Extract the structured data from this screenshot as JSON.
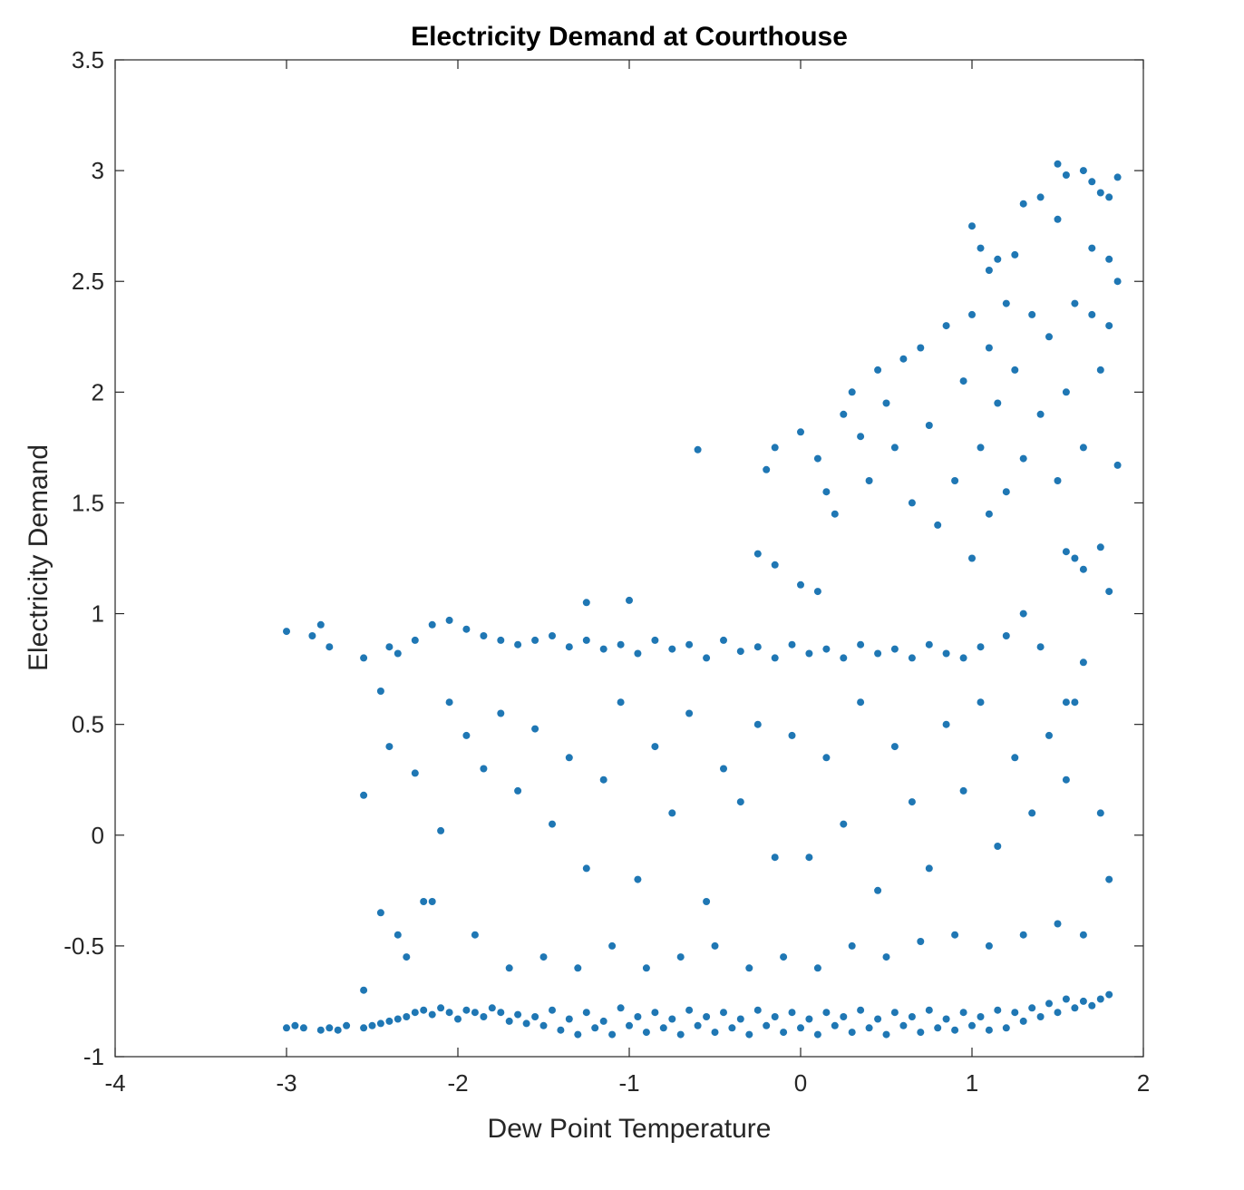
{
  "chart_data": {
    "type": "scatter",
    "title": "Electricity Demand at Courthouse",
    "xlabel": "Dew Point Temperature",
    "ylabel": "Electricity Demand",
    "xlim": [
      -4,
      2
    ],
    "ylim": [
      -1,
      3.5
    ],
    "xticks": [
      "-4",
      "-3",
      "-2",
      "-1",
      "0",
      "1",
      "2"
    ],
    "yticks": [
      "-1",
      "-0.5",
      "0",
      "0.5",
      "1",
      "1.5",
      "2",
      "2.5",
      "3",
      "3.5"
    ],
    "grid": false,
    "marker_color": "#1f77b4",
    "series": [
      {
        "points": [
          [
            -3.0,
            -0.87
          ],
          [
            -2.95,
            -0.86
          ],
          [
            -2.9,
            -0.87
          ],
          [
            -2.8,
            -0.88
          ],
          [
            -2.75,
            -0.87
          ],
          [
            -2.7,
            -0.88
          ],
          [
            -2.65,
            -0.86
          ],
          [
            -2.55,
            -0.87
          ],
          [
            -2.5,
            -0.86
          ],
          [
            -2.45,
            -0.85
          ],
          [
            -2.4,
            -0.84
          ],
          [
            -2.35,
            -0.83
          ],
          [
            -2.3,
            -0.82
          ],
          [
            -2.25,
            -0.8
          ],
          [
            -2.2,
            -0.79
          ],
          [
            -2.15,
            -0.81
          ],
          [
            -2.1,
            -0.78
          ],
          [
            -2.05,
            -0.8
          ],
          [
            -2.0,
            -0.83
          ],
          [
            -1.95,
            -0.79
          ],
          [
            -1.9,
            -0.8
          ],
          [
            -1.85,
            -0.82
          ],
          [
            -1.8,
            -0.78
          ],
          [
            -1.75,
            -0.8
          ],
          [
            -1.7,
            -0.84
          ],
          [
            -1.65,
            -0.81
          ],
          [
            -1.6,
            -0.85
          ],
          [
            -1.55,
            -0.82
          ],
          [
            -1.5,
            -0.86
          ],
          [
            -1.45,
            -0.79
          ],
          [
            -1.4,
            -0.88
          ],
          [
            -1.35,
            -0.83
          ],
          [
            -1.3,
            -0.9
          ],
          [
            -1.25,
            -0.8
          ],
          [
            -1.2,
            -0.87
          ],
          [
            -1.15,
            -0.84
          ],
          [
            -1.1,
            -0.9
          ],
          [
            -1.05,
            -0.78
          ],
          [
            -1.0,
            -0.86
          ],
          [
            -0.95,
            -0.82
          ],
          [
            -0.9,
            -0.89
          ],
          [
            -0.85,
            -0.8
          ],
          [
            -0.8,
            -0.87
          ],
          [
            -0.75,
            -0.83
          ],
          [
            -0.7,
            -0.9
          ],
          [
            -0.65,
            -0.79
          ],
          [
            -0.6,
            -0.86
          ],
          [
            -0.55,
            -0.82
          ],
          [
            -0.5,
            -0.89
          ],
          [
            -0.45,
            -0.8
          ],
          [
            -0.4,
            -0.87
          ],
          [
            -0.35,
            -0.83
          ],
          [
            -0.3,
            -0.9
          ],
          [
            -0.25,
            -0.79
          ],
          [
            -0.2,
            -0.86
          ],
          [
            -0.15,
            -0.82
          ],
          [
            -0.1,
            -0.89
          ],
          [
            -0.05,
            -0.8
          ],
          [
            0.0,
            -0.87
          ],
          [
            0.05,
            -0.83
          ],
          [
            0.1,
            -0.9
          ],
          [
            0.15,
            -0.8
          ],
          [
            0.2,
            -0.86
          ],
          [
            0.25,
            -0.82
          ],
          [
            0.3,
            -0.89
          ],
          [
            0.35,
            -0.79
          ],
          [
            0.4,
            -0.87
          ],
          [
            0.45,
            -0.83
          ],
          [
            0.5,
            -0.9
          ],
          [
            0.55,
            -0.8
          ],
          [
            0.6,
            -0.86
          ],
          [
            0.65,
            -0.82
          ],
          [
            0.7,
            -0.89
          ],
          [
            0.75,
            -0.79
          ],
          [
            0.8,
            -0.87
          ],
          [
            0.85,
            -0.83
          ],
          [
            0.9,
            -0.88
          ],
          [
            0.95,
            -0.8
          ],
          [
            1.0,
            -0.86
          ],
          [
            1.05,
            -0.82
          ],
          [
            1.1,
            -0.88
          ],
          [
            1.15,
            -0.79
          ],
          [
            1.2,
            -0.87
          ],
          [
            1.25,
            -0.8
          ],
          [
            1.3,
            -0.84
          ],
          [
            1.35,
            -0.78
          ],
          [
            1.4,
            -0.82
          ],
          [
            1.45,
            -0.76
          ],
          [
            1.5,
            -0.8
          ],
          [
            1.55,
            -0.74
          ],
          [
            1.6,
            -0.78
          ],
          [
            1.65,
            -0.75
          ],
          [
            1.7,
            -0.77
          ],
          [
            1.75,
            -0.74
          ],
          [
            1.8,
            -0.72
          ],
          [
            -2.3,
            -0.55
          ],
          [
            -2.2,
            -0.3
          ],
          [
            -2.1,
            0.02
          ],
          [
            -2.25,
            0.28
          ],
          [
            -2.4,
            0.4
          ],
          [
            -2.55,
            0.18
          ],
          [
            -2.45,
            0.65
          ],
          [
            -2.35,
            0.82
          ],
          [
            -2.25,
            0.88
          ],
          [
            -2.15,
            0.95
          ],
          [
            -2.05,
            0.97
          ],
          [
            -1.95,
            0.93
          ],
          [
            -1.85,
            0.9
          ],
          [
            -1.75,
            0.88
          ],
          [
            -1.65,
            0.86
          ],
          [
            -1.55,
            0.88
          ],
          [
            -1.45,
            0.9
          ],
          [
            -1.35,
            0.85
          ],
          [
            -1.25,
            0.88
          ],
          [
            -1.15,
            0.84
          ],
          [
            -1.05,
            0.86
          ],
          [
            -0.95,
            0.82
          ],
          [
            -0.85,
            0.88
          ],
          [
            -0.75,
            0.84
          ],
          [
            -0.65,
            0.86
          ],
          [
            -0.55,
            0.8
          ],
          [
            -0.45,
            0.88
          ],
          [
            -0.35,
            0.83
          ],
          [
            -0.25,
            0.85
          ],
          [
            -0.15,
            0.8
          ],
          [
            -0.05,
            0.86
          ],
          [
            0.05,
            0.82
          ],
          [
            0.15,
            0.84
          ],
          [
            0.25,
            0.8
          ],
          [
            0.35,
            0.86
          ],
          [
            0.45,
            0.82
          ],
          [
            0.55,
            0.84
          ],
          [
            0.65,
            0.8
          ],
          [
            0.75,
            0.86
          ],
          [
            0.85,
            0.82
          ],
          [
            0.95,
            0.8
          ],
          [
            1.05,
            0.85
          ],
          [
            -2.05,
            0.6
          ],
          [
            -1.95,
            0.45
          ],
          [
            -1.85,
            0.3
          ],
          [
            -1.75,
            0.55
          ],
          [
            -1.65,
            0.2
          ],
          [
            -1.55,
            0.48
          ],
          [
            -1.45,
            0.05
          ],
          [
            -1.35,
            0.35
          ],
          [
            -1.25,
            -0.15
          ],
          [
            -1.15,
            0.25
          ],
          [
            -1.05,
            0.6
          ],
          [
            -0.95,
            -0.2
          ],
          [
            -0.85,
            0.4
          ],
          [
            -0.75,
            0.1
          ],
          [
            -0.65,
            0.55
          ],
          [
            -0.55,
            -0.3
          ],
          [
            -0.45,
            0.3
          ],
          [
            -0.35,
            0.15
          ],
          [
            -0.25,
            0.5
          ],
          [
            -0.15,
            -0.1
          ],
          [
            -0.05,
            0.45
          ],
          [
            0.05,
            -0.1
          ],
          [
            0.15,
            0.35
          ],
          [
            0.25,
            0.05
          ],
          [
            0.35,
            0.6
          ],
          [
            0.45,
            -0.25
          ],
          [
            0.55,
            0.4
          ],
          [
            0.65,
            0.15
          ],
          [
            0.75,
            -0.15
          ],
          [
            0.85,
            0.5
          ],
          [
            0.95,
            0.2
          ],
          [
            1.05,
            0.6
          ],
          [
            1.15,
            -0.05
          ],
          [
            1.25,
            0.35
          ],
          [
            1.35,
            0.1
          ],
          [
            1.45,
            0.45
          ],
          [
            1.55,
            0.25
          ],
          [
            1.6,
            0.6
          ],
          [
            1.75,
            0.1
          ],
          [
            1.8,
            -0.2
          ],
          [
            -1.9,
            -0.45
          ],
          [
            -1.7,
            -0.6
          ],
          [
            -1.5,
            -0.55
          ],
          [
            -1.3,
            -0.6
          ],
          [
            -1.1,
            -0.5
          ],
          [
            -0.9,
            -0.6
          ],
          [
            -0.7,
            -0.55
          ],
          [
            -0.5,
            -0.5
          ],
          [
            -0.3,
            -0.6
          ],
          [
            -0.1,
            -0.55
          ],
          [
            0.1,
            -0.6
          ],
          [
            0.3,
            -0.5
          ],
          [
            0.5,
            -0.55
          ],
          [
            0.7,
            -0.48
          ],
          [
            0.9,
            -0.45
          ],
          [
            1.1,
            -0.5
          ],
          [
            1.3,
            -0.45
          ],
          [
            1.5,
            -0.4
          ],
          [
            1.65,
            -0.45
          ],
          [
            -0.6,
            1.74
          ],
          [
            -0.2,
            1.65
          ],
          [
            -0.15,
            1.75
          ],
          [
            -0.25,
            1.27
          ],
          [
            -0.15,
            1.22
          ],
          [
            -1.0,
            1.06
          ],
          [
            -1.25,
            1.05
          ],
          [
            0.0,
            1.13
          ],
          [
            0.1,
            1.1
          ],
          [
            0.0,
            1.82
          ],
          [
            0.1,
            1.7
          ],
          [
            0.15,
            1.55
          ],
          [
            0.2,
            1.45
          ],
          [
            0.25,
            1.9
          ],
          [
            0.3,
            2.0
          ],
          [
            0.35,
            1.8
          ],
          [
            0.4,
            1.6
          ],
          [
            0.45,
            2.1
          ],
          [
            0.5,
            1.95
          ],
          [
            0.55,
            1.75
          ],
          [
            0.6,
            2.15
          ],
          [
            0.65,
            1.5
          ],
          [
            0.7,
            2.2
          ],
          [
            0.75,
            1.85
          ],
          [
            0.8,
            1.4
          ],
          [
            0.85,
            2.3
          ],
          [
            0.9,
            1.6
          ],
          [
            0.95,
            2.05
          ],
          [
            1.0,
            1.25
          ],
          [
            1.0,
            2.35
          ],
          [
            1.05,
            1.75
          ],
          [
            1.1,
            2.2
          ],
          [
            1.1,
            1.45
          ],
          [
            1.15,
            1.95
          ],
          [
            1.2,
            2.4
          ],
          [
            1.2,
            1.55
          ],
          [
            1.25,
            2.1
          ],
          [
            1.3,
            1.7
          ],
          [
            1.35,
            2.35
          ],
          [
            1.4,
            1.9
          ],
          [
            1.45,
            2.25
          ],
          [
            1.5,
            1.6
          ],
          [
            1.55,
            2.0
          ],
          [
            1.6,
            2.4
          ],
          [
            1.65,
            1.75
          ],
          [
            1.7,
            2.35
          ],
          [
            1.75,
            2.1
          ],
          [
            1.8,
            2.3
          ],
          [
            1.85,
            1.67
          ],
          [
            1.0,
            2.75
          ],
          [
            1.05,
            2.65
          ],
          [
            1.1,
            2.55
          ],
          [
            1.15,
            2.6
          ],
          [
            1.25,
            2.62
          ],
          [
            1.3,
            2.85
          ],
          [
            1.4,
            2.88
          ],
          [
            1.5,
            2.78
          ],
          [
            1.5,
            3.03
          ],
          [
            1.55,
            2.98
          ],
          [
            1.65,
            3.0
          ],
          [
            1.7,
            2.95
          ],
          [
            1.75,
            2.9
          ],
          [
            1.8,
            2.88
          ],
          [
            1.85,
            2.97
          ],
          [
            1.7,
            2.65
          ],
          [
            1.8,
            2.6
          ],
          [
            1.85,
            2.5
          ],
          [
            1.55,
            1.28
          ],
          [
            1.6,
            1.25
          ],
          [
            1.65,
            1.2
          ],
          [
            1.75,
            1.3
          ],
          [
            1.8,
            1.1
          ],
          [
            1.55,
            0.6
          ],
          [
            1.65,
            0.78
          ],
          [
            1.2,
            0.9
          ],
          [
            1.4,
            0.85
          ],
          [
            1.3,
            1.0
          ],
          [
            -3.0,
            0.92
          ],
          [
            -2.85,
            0.9
          ],
          [
            -2.8,
            0.95
          ],
          [
            -2.75,
            0.85
          ],
          [
            -2.55,
            0.8
          ],
          [
            -2.4,
            0.85
          ],
          [
            -2.45,
            -0.35
          ],
          [
            -2.35,
            -0.45
          ],
          [
            -2.55,
            -0.7
          ],
          [
            -2.15,
            -0.3
          ]
        ]
      }
    ]
  }
}
